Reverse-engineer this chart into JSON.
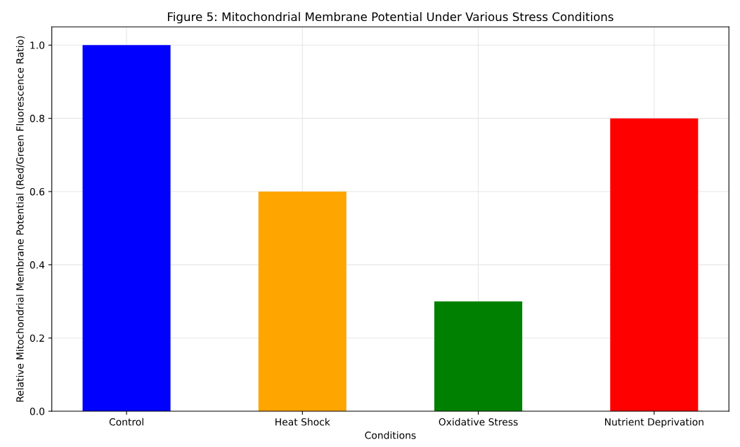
{
  "chart_data": {
    "type": "bar",
    "title": "Figure 5: Mitochondrial Membrane Potential Under Various Stress Conditions",
    "xlabel": "Conditions",
    "ylabel": "Relative Mitochondrial Membrane Potential (Red/Green Fluorescence Ratio)",
    "categories": [
      "Control",
      "Heat Shock",
      "Oxidative Stress",
      "Nutrient Deprivation"
    ],
    "values": [
      1.0,
      0.6,
      0.3,
      0.8
    ],
    "colors": [
      "#0000ff",
      "#ffa500",
      "#008000",
      "#ff0000"
    ],
    "ylim": [
      0,
      1.05
    ],
    "yticks": [
      {
        "value": 0,
        "label": "0.0"
      },
      {
        "value": 0.2,
        "label": "0.2"
      },
      {
        "value": 0.4,
        "label": "0.4"
      },
      {
        "value": 0.6,
        "label": "0.6"
      },
      {
        "value": 0.8,
        "label": "0.8"
      },
      {
        "value": 1.0,
        "label": "1.0"
      }
    ],
    "grid": true
  }
}
